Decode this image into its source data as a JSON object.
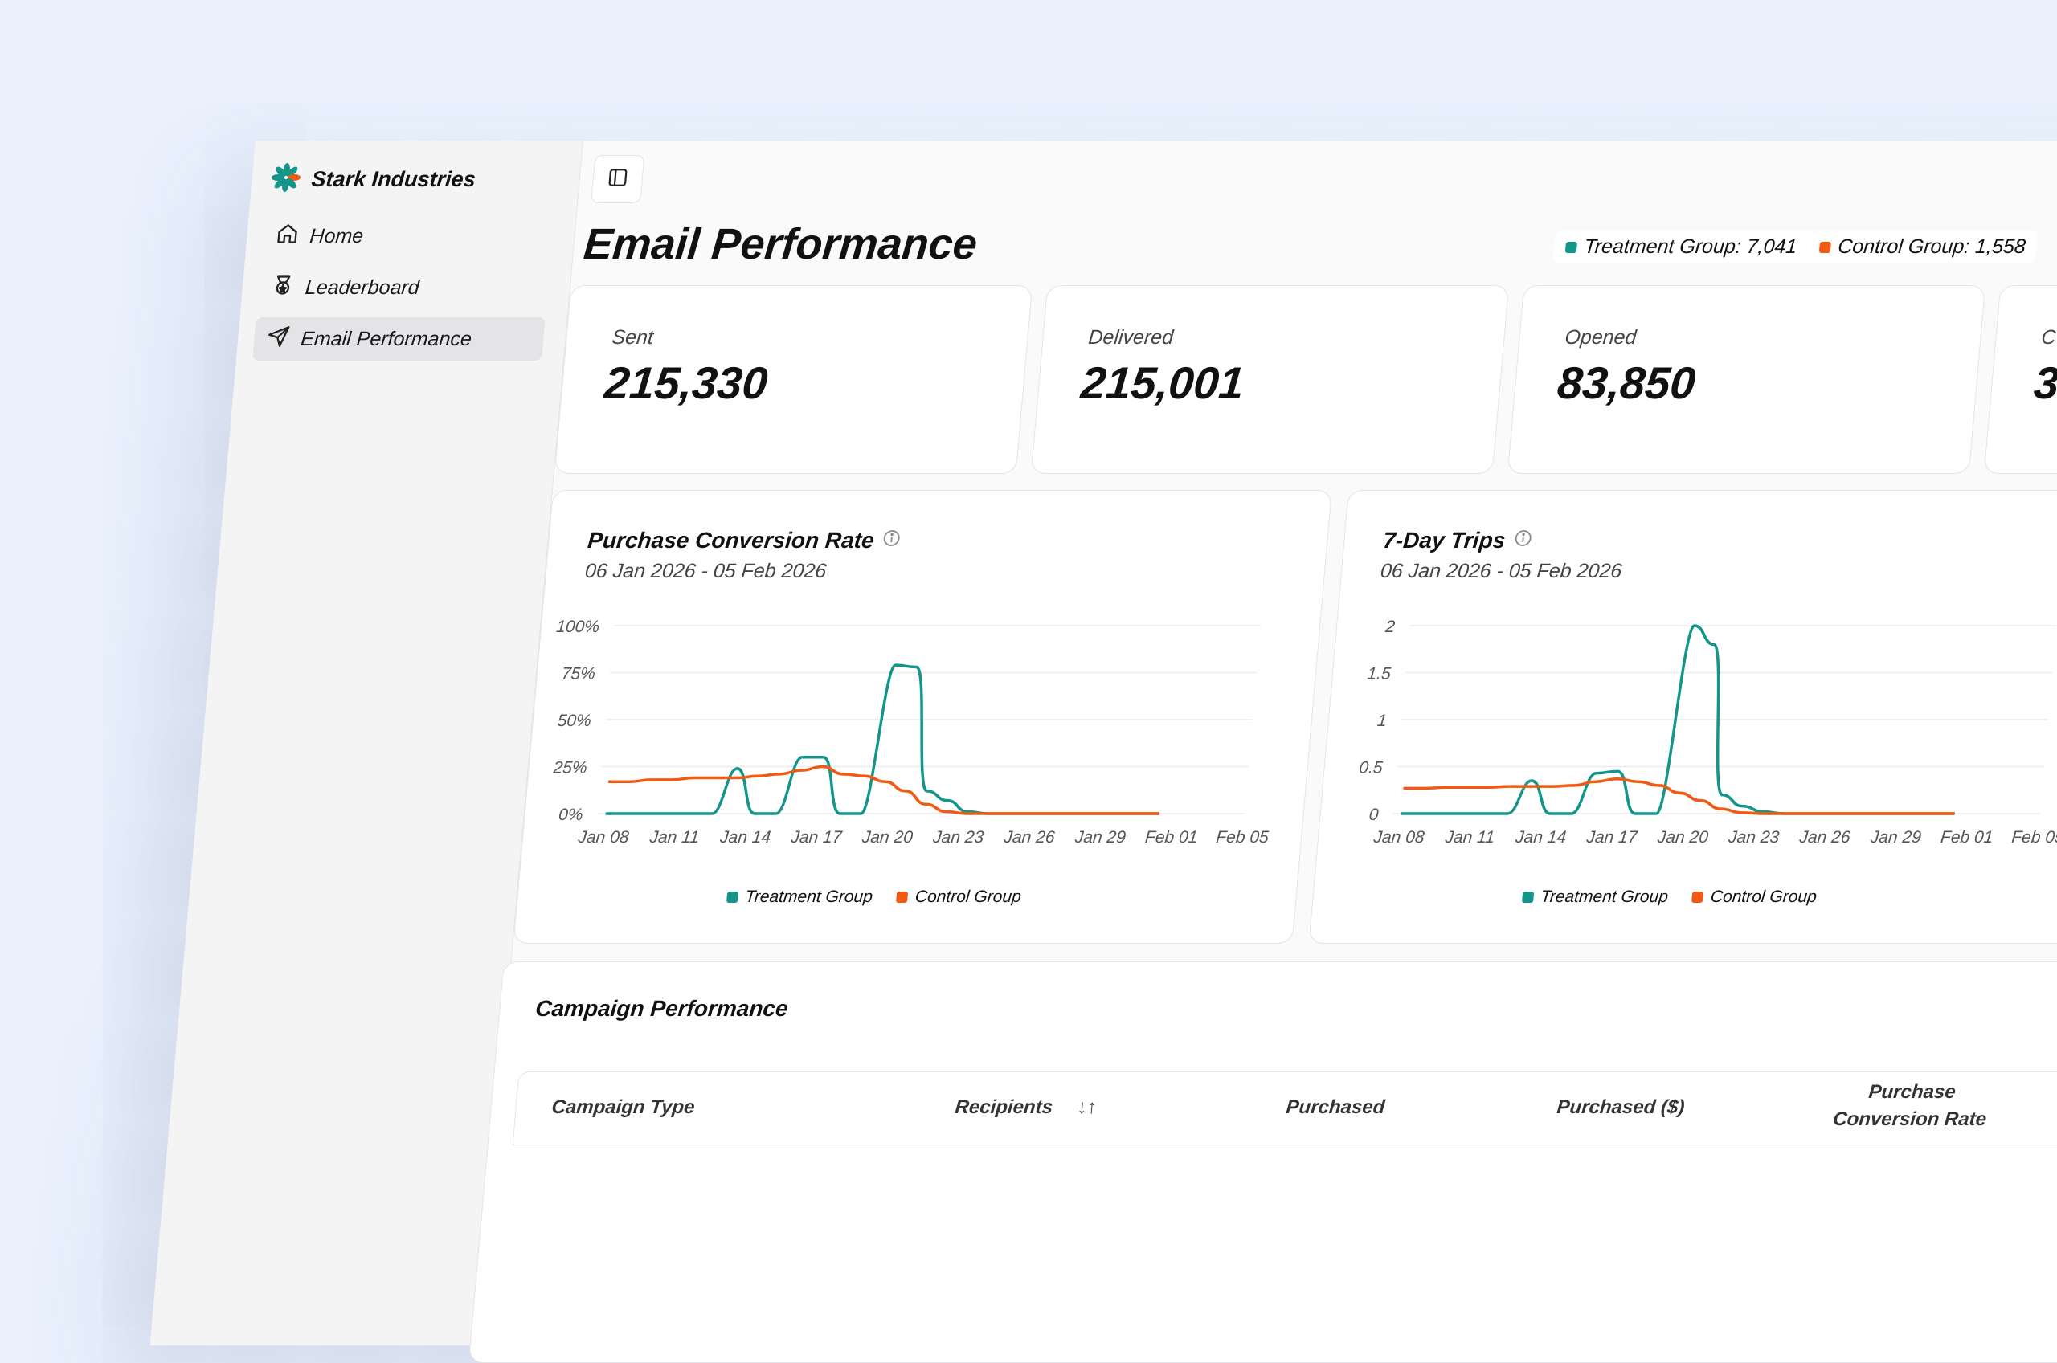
{
  "brand": {
    "name": "Stark Industries"
  },
  "sidebar": {
    "items": [
      {
        "label": "Home",
        "icon": "home-icon"
      },
      {
        "label": "Leaderboard",
        "icon": "medal-icon"
      },
      {
        "label": "Email Performance",
        "icon": "send-icon",
        "active": true
      }
    ]
  },
  "header": {
    "title": "Email Performance",
    "legend": [
      {
        "label": "Treatment Group: 7,041",
        "color": "#13958a"
      },
      {
        "label": "Control Group: 1,558",
        "color": "#f15a13"
      }
    ]
  },
  "metrics": [
    {
      "label": "Sent",
      "value": "215,330"
    },
    {
      "label": "Delivered",
      "value": "215,001"
    },
    {
      "label": "Opened",
      "value": "83,850"
    },
    {
      "label": "C",
      "value": "3"
    }
  ],
  "colors": {
    "treatment": "#13958a",
    "control": "#f15a13",
    "accent": "#13958a"
  },
  "charts": [
    {
      "title": "Purchase Conversion Rate",
      "subtitle": "06 Jan 2026 - 05 Feb 2026",
      "legend": [
        "Treatment Group",
        "Control Group"
      ]
    },
    {
      "title": "7-Day Trips",
      "subtitle": "06 Jan 2026 - 05 Feb 2026",
      "legend": [
        "Treatment Group",
        "Control Group"
      ]
    }
  ],
  "chart_data": [
    {
      "type": "line",
      "title": "Purchase Conversion Rate",
      "x_ticks": [
        "Jan 08",
        "Jan 11",
        "Jan 14",
        "Jan 17",
        "Jan 20",
        "Jan 23",
        "Jan 26",
        "Jan 29",
        "Feb 01",
        "Feb 05"
      ],
      "y_ticks": [
        "0%",
        "25%",
        "50%",
        "75%",
        "100%"
      ],
      "ylim": [
        0,
        100
      ],
      "x": [
        "Jan 06",
        "Jan 07",
        "Jan 08",
        "Jan 09",
        "Jan 10",
        "Jan 11",
        "Jan 12",
        "Jan 13",
        "Jan 14",
        "Jan 15",
        "Jan 16",
        "Jan 17",
        "Jan 18",
        "Jan 19",
        "Jan 20",
        "Jan 21",
        "Jan 22",
        "Jan 23",
        "Jan 24",
        "Jan 25",
        "Jan 26",
        "Jan 27",
        "Jan 28",
        "Jan 29",
        "Jan 30",
        "Jan 31",
        "Feb 01"
      ],
      "series": [
        {
          "name": "Treatment Group",
          "color": "#13958a",
          "values": [
            0,
            0,
            0,
            0,
            0,
            0,
            24,
            0,
            0,
            30,
            30,
            0,
            0,
            79,
            78,
            12,
            7,
            1,
            0,
            0,
            0,
            0,
            0,
            0,
            0,
            0,
            0
          ]
        },
        {
          "name": "Control Group",
          "color": "#f15a13",
          "values": [
            17,
            17,
            18,
            18,
            19,
            19,
            19,
            20,
            21,
            23,
            25,
            21,
            20,
            17,
            12,
            5,
            1,
            0,
            0,
            0,
            0,
            0,
            0,
            0,
            0,
            0,
            0
          ]
        }
      ]
    },
    {
      "type": "line",
      "title": "7-Day Trips",
      "x_ticks": [
        "Jan 08",
        "Jan 11",
        "Jan 14",
        "Jan 17",
        "Jan 20",
        "Jan 23",
        "Jan 26",
        "Jan 29",
        "Feb 01",
        "Feb 05"
      ],
      "y_ticks": [
        "0",
        "0.5",
        "1",
        "1.5",
        "2"
      ],
      "ylim": [
        0,
        2
      ],
      "x": [
        "Jan 06",
        "Jan 07",
        "Jan 08",
        "Jan 09",
        "Jan 10",
        "Jan 11",
        "Jan 12",
        "Jan 13",
        "Jan 14",
        "Jan 15",
        "Jan 16",
        "Jan 17",
        "Jan 18",
        "Jan 19",
        "Jan 20",
        "Jan 21",
        "Jan 22",
        "Jan 23",
        "Jan 24",
        "Jan 25",
        "Jan 26",
        "Jan 27",
        "Jan 28",
        "Jan 29",
        "Jan 30",
        "Jan 31",
        "Feb 01"
      ],
      "series": [
        {
          "name": "Treatment Group",
          "color": "#13958a",
          "values": [
            0,
            0,
            0,
            0,
            0,
            0,
            0.35,
            0,
            0,
            0.43,
            0.45,
            0,
            0,
            2.0,
            1.8,
            0.2,
            0.08,
            0.02,
            0,
            0,
            0,
            0,
            0,
            0,
            0,
            0,
            0
          ]
        },
        {
          "name": "Control Group",
          "color": "#f15a13",
          "values": [
            0.27,
            0.27,
            0.28,
            0.28,
            0.28,
            0.29,
            0.29,
            0.29,
            0.3,
            0.34,
            0.37,
            0.34,
            0.3,
            0.22,
            0.14,
            0.05,
            0.01,
            0,
            0,
            0,
            0,
            0,
            0,
            0,
            0,
            0,
            0
          ]
        }
      ]
    }
  ],
  "table": {
    "title": "Campaign Performance",
    "columns": [
      "Campaign Type",
      "Recipients",
      "Purchased",
      "Purchased ($)",
      "Purchase",
      "Conversion Rate"
    ],
    "sort_icon": "↓↑"
  }
}
